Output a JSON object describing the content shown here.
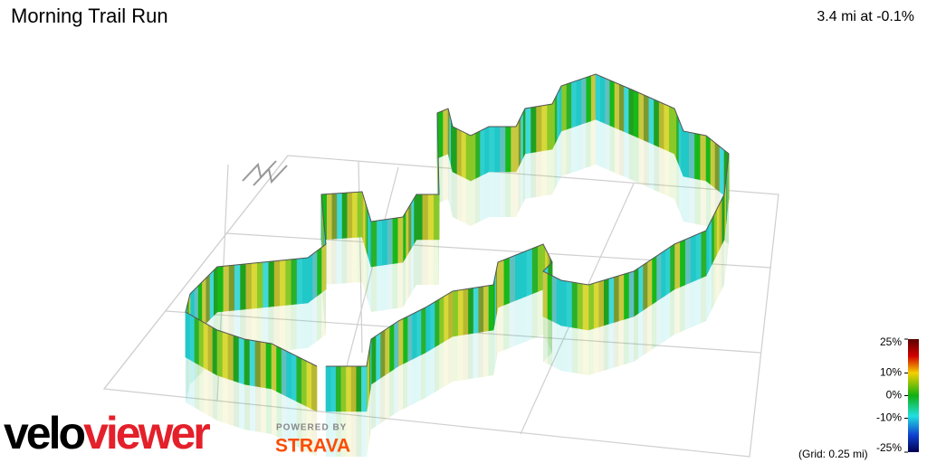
{
  "header": {
    "title": "Morning Trail Run",
    "stats": "3.4 mi at -0.1%"
  },
  "colorbar": {
    "lim": [
      -25,
      25
    ],
    "ticks": [
      {
        "value": 25,
        "label": "25%"
      },
      {
        "value": 10,
        "label": "10%"
      },
      {
        "value": 0,
        "label": "0%"
      },
      {
        "value": -10,
        "label": "-10%"
      },
      {
        "value": -25,
        "label": "-25%"
      }
    ],
    "note": "(Grid: 0.25 mi)"
  },
  "branding": {
    "logo_velo": "velo",
    "logo_viewer": "viewer",
    "powered_by": "POWERED BY",
    "strava": "STRAVA"
  }
}
